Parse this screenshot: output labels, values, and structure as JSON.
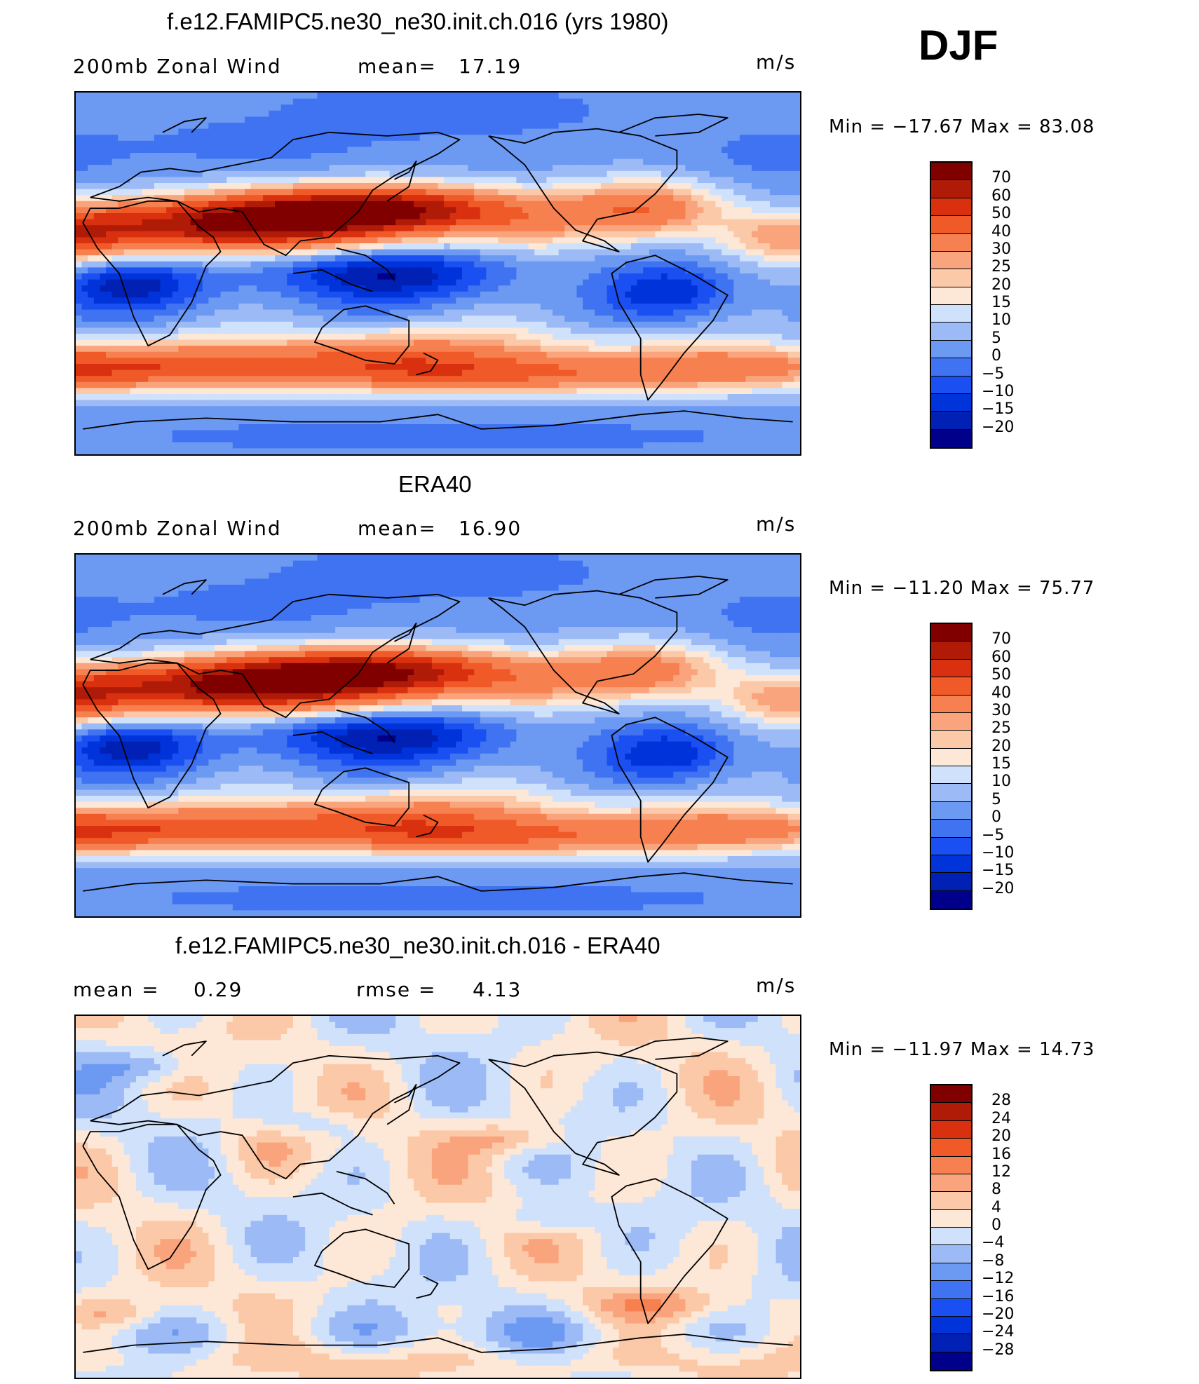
{
  "season": "DJF",
  "colors": {
    "wind_scale": [
      "#00008b",
      "#0021b3",
      "#0033d9",
      "#1a4ff2",
      "#4073f2",
      "#6c99f2",
      "#9cbaf5",
      "#cfe1fb",
      "#fde7d6",
      "#fbc8a8",
      "#f9a47c",
      "#f6804f",
      "#f05a28",
      "#d9300f",
      "#b01b08",
      "#800000"
    ],
    "diff_scale": [
      "#00008b",
      "#0021b3",
      "#0033d9",
      "#1a4ff2",
      "#4073f2",
      "#6c99f2",
      "#9cbaf5",
      "#cfe1fb",
      "#fde7d6",
      "#fbc8a8",
      "#f9a47c",
      "#f6804f",
      "#f05a28",
      "#d9300f",
      "#b01b08",
      "#800000"
    ]
  },
  "panels": [
    {
      "title": "f.e12.FAMIPC5.ne30_ne30.init.ch.016 (yrs 1980)",
      "left_label": "200mb Zonal Wind",
      "stat_label": "mean=",
      "stat_value": "17.19",
      "units": "m/s",
      "minmax": "Min = −17.67 Max =  83.08",
      "field": "model",
      "colorbar_labels": [
        "70",
        "60",
        "50",
        "40",
        "30",
        "25",
        "20",
        "15",
        "10",
        "5",
        "0",
        "−5",
        "−10",
        "−15",
        "−20"
      ]
    },
    {
      "title": "ERA40",
      "left_label": "200mb Zonal Wind",
      "stat_label": "mean=",
      "stat_value": "16.90",
      "units": "m/s",
      "minmax": "Min = −11.20 Max =  75.77",
      "field": "obs",
      "colorbar_labels": [
        "70",
        "60",
        "50",
        "40",
        "30",
        "25",
        "20",
        "15",
        "10",
        "5",
        "0",
        "−5",
        "−10",
        "−15",
        "−20"
      ]
    },
    {
      "title": "f.e12.FAMIPC5.ne30_ne30.init.ch.016 - ERA40",
      "left_label": "mean =",
      "left_value": "0.29",
      "stat_label": "rmse =",
      "stat_value": "4.13",
      "units": "m/s",
      "minmax": "Min = −11.97 Max =  14.73",
      "field": "diff",
      "colorbar_labels": [
        "28",
        "24",
        "20",
        "16",
        "12",
        "8",
        "4",
        "0",
        "−4",
        "−8",
        "−12",
        "−16",
        "−20",
        "−24",
        "−28"
      ]
    }
  ]
}
